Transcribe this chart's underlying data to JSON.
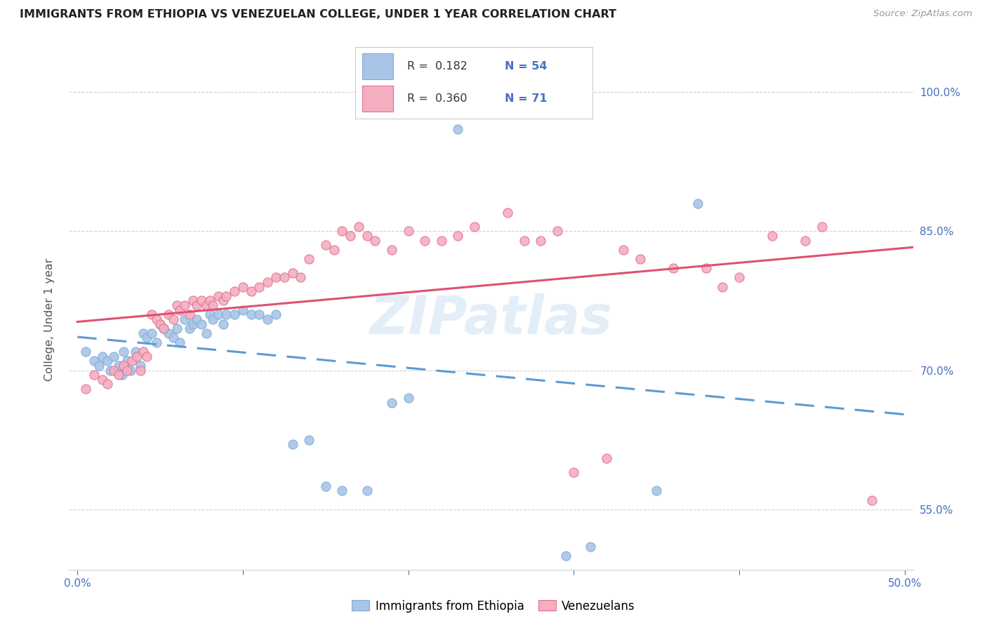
{
  "title": "IMMIGRANTS FROM ETHIOPIA VS VENEZUELAN COLLEGE, UNDER 1 YEAR CORRELATION CHART",
  "source": "Source: ZipAtlas.com",
  "ylabel": "College, Under 1 year",
  "xlim": [
    -0.005,
    0.505
  ],
  "ylim": [
    0.485,
    1.025
  ],
  "xtick_values": [
    0.0,
    0.1,
    0.2,
    0.3,
    0.4,
    0.5
  ],
  "xtick_labels": [
    "0.0%",
    "",
    "",
    "",
    "",
    "50.0%"
  ],
  "ytick_values": [
    0.55,
    0.7,
    0.85,
    1.0
  ],
  "ytick_labels": [
    "55.0%",
    "70.0%",
    "85.0%",
    "100.0%"
  ],
  "ethiopia_color": "#aac4e8",
  "venezuela_color": "#f4aec0",
  "eth_edge_color": "#7bafd4",
  "ven_edge_color": "#e07090",
  "legend_ethiopia_label": "Immigrants from Ethiopia",
  "legend_venezuela_label": "Venezuelans",
  "R_ethiopia": "0.182",
  "N_ethiopia": "54",
  "R_venezuela": "0.360",
  "N_venezuela": "71",
  "trend_ethiopia_color": "#5b9bd5",
  "trend_venezuela_color": "#e05070",
  "watermark": "ZIPatlas",
  "ethiopia_x": [
    0.005,
    0.01,
    0.013,
    0.015,
    0.018,
    0.02,
    0.022,
    0.025,
    0.027,
    0.028,
    0.03,
    0.032,
    0.035,
    0.038,
    0.04,
    0.042,
    0.045,
    0.048,
    0.05,
    0.052,
    0.055,
    0.058,
    0.06,
    0.062,
    0.065,
    0.068,
    0.07,
    0.072,
    0.075,
    0.078,
    0.08,
    0.082,
    0.085,
    0.088,
    0.09,
    0.095,
    0.1,
    0.105,
    0.11,
    0.115,
    0.12,
    0.13,
    0.14,
    0.15,
    0.16,
    0.175,
    0.19,
    0.2,
    0.215,
    0.23,
    0.295,
    0.31,
    0.35,
    0.375
  ],
  "ethiopia_y": [
    0.72,
    0.71,
    0.705,
    0.715,
    0.71,
    0.7,
    0.715,
    0.705,
    0.695,
    0.72,
    0.71,
    0.7,
    0.72,
    0.705,
    0.74,
    0.735,
    0.74,
    0.73,
    0.75,
    0.745,
    0.74,
    0.735,
    0.745,
    0.73,
    0.755,
    0.745,
    0.75,
    0.755,
    0.75,
    0.74,
    0.76,
    0.755,
    0.76,
    0.75,
    0.76,
    0.76,
    0.765,
    0.76,
    0.76,
    0.755,
    0.76,
    0.62,
    0.625,
    0.575,
    0.57,
    0.57,
    0.665,
    0.67,
    0.99,
    0.96,
    0.5,
    0.51,
    0.57,
    0.88
  ],
  "venezuela_x": [
    0.005,
    0.01,
    0.015,
    0.018,
    0.022,
    0.025,
    0.028,
    0.03,
    0.033,
    0.036,
    0.038,
    0.04,
    0.042,
    0.045,
    0.048,
    0.05,
    0.052,
    0.055,
    0.058,
    0.06,
    0.062,
    0.065,
    0.068,
    0.07,
    0.072,
    0.075,
    0.078,
    0.08,
    0.082,
    0.085,
    0.088,
    0.09,
    0.095,
    0.1,
    0.105,
    0.11,
    0.115,
    0.12,
    0.125,
    0.13,
    0.135,
    0.14,
    0.15,
    0.155,
    0.16,
    0.165,
    0.17,
    0.175,
    0.18,
    0.19,
    0.2,
    0.21,
    0.22,
    0.23,
    0.24,
    0.26,
    0.27,
    0.28,
    0.29,
    0.3,
    0.32,
    0.33,
    0.34,
    0.36,
    0.38,
    0.39,
    0.4,
    0.42,
    0.44,
    0.45,
    0.48
  ],
  "venezuela_y": [
    0.68,
    0.695,
    0.69,
    0.685,
    0.7,
    0.695,
    0.705,
    0.7,
    0.71,
    0.715,
    0.7,
    0.72,
    0.715,
    0.76,
    0.755,
    0.75,
    0.745,
    0.76,
    0.755,
    0.77,
    0.765,
    0.77,
    0.76,
    0.775,
    0.77,
    0.775,
    0.77,
    0.775,
    0.77,
    0.78,
    0.775,
    0.78,
    0.785,
    0.79,
    0.785,
    0.79,
    0.795,
    0.8,
    0.8,
    0.805,
    0.8,
    0.82,
    0.835,
    0.83,
    0.85,
    0.845,
    0.855,
    0.845,
    0.84,
    0.83,
    0.85,
    0.84,
    0.84,
    0.845,
    0.855,
    0.87,
    0.84,
    0.84,
    0.85,
    0.59,
    0.605,
    0.83,
    0.82,
    0.81,
    0.81,
    0.79,
    0.8,
    0.845,
    0.84,
    0.855,
    0.56
  ],
  "trend_eth_x0": 0.0,
  "trend_eth_x1": 0.505,
  "trend_ven_x0": 0.0,
  "trend_ven_x1": 0.505,
  "grid_color": "#d0d0d0",
  "tick_color": "#4472c4",
  "ylabel_color": "#555555",
  "title_color": "#222222",
  "source_color": "#999999"
}
